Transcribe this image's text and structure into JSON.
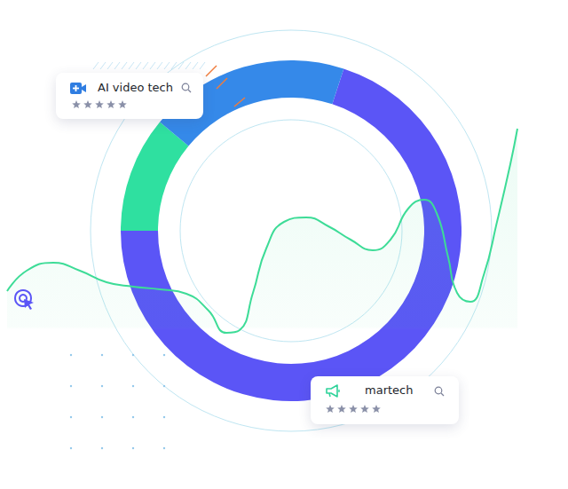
{
  "chart_data": [
    {
      "type": "pie",
      "values": [
        70,
        11,
        19
      ],
      "colors": [
        "#5b55f6",
        "#2fe0a0",
        "#3589e9"
      ],
      "annotations": [
        "AI video tech",
        "martech"
      ]
    },
    {
      "type": "line",
      "color": "#3ddc97",
      "x": [
        8,
        30,
        60,
        90,
        120,
        150,
        180,
        210,
        235,
        255,
        270,
        285,
        300,
        320,
        345,
        370,
        395,
        420,
        440,
        460,
        478,
        492,
        505,
        515,
        530,
        545,
        560,
        575,
        583
      ],
      "values": [
        223,
        246,
        255,
        246,
        233,
        228,
        225,
        220,
        201,
        176,
        179,
        221,
        271,
        301,
        306,
        296,
        281,
        269,
        281,
        316,
        326,
        311,
        261,
        221,
        211,
        241,
        301,
        366,
        406
      ],
      "xlim": [
        0,
        640
      ],
      "ylim": [
        0,
        551
      ],
      "xticks": [
        0,
        640
      ],
      "yticks": [
        0,
        551
      ],
      "tick_labels": false,
      "grid": false
    }
  ]
}
